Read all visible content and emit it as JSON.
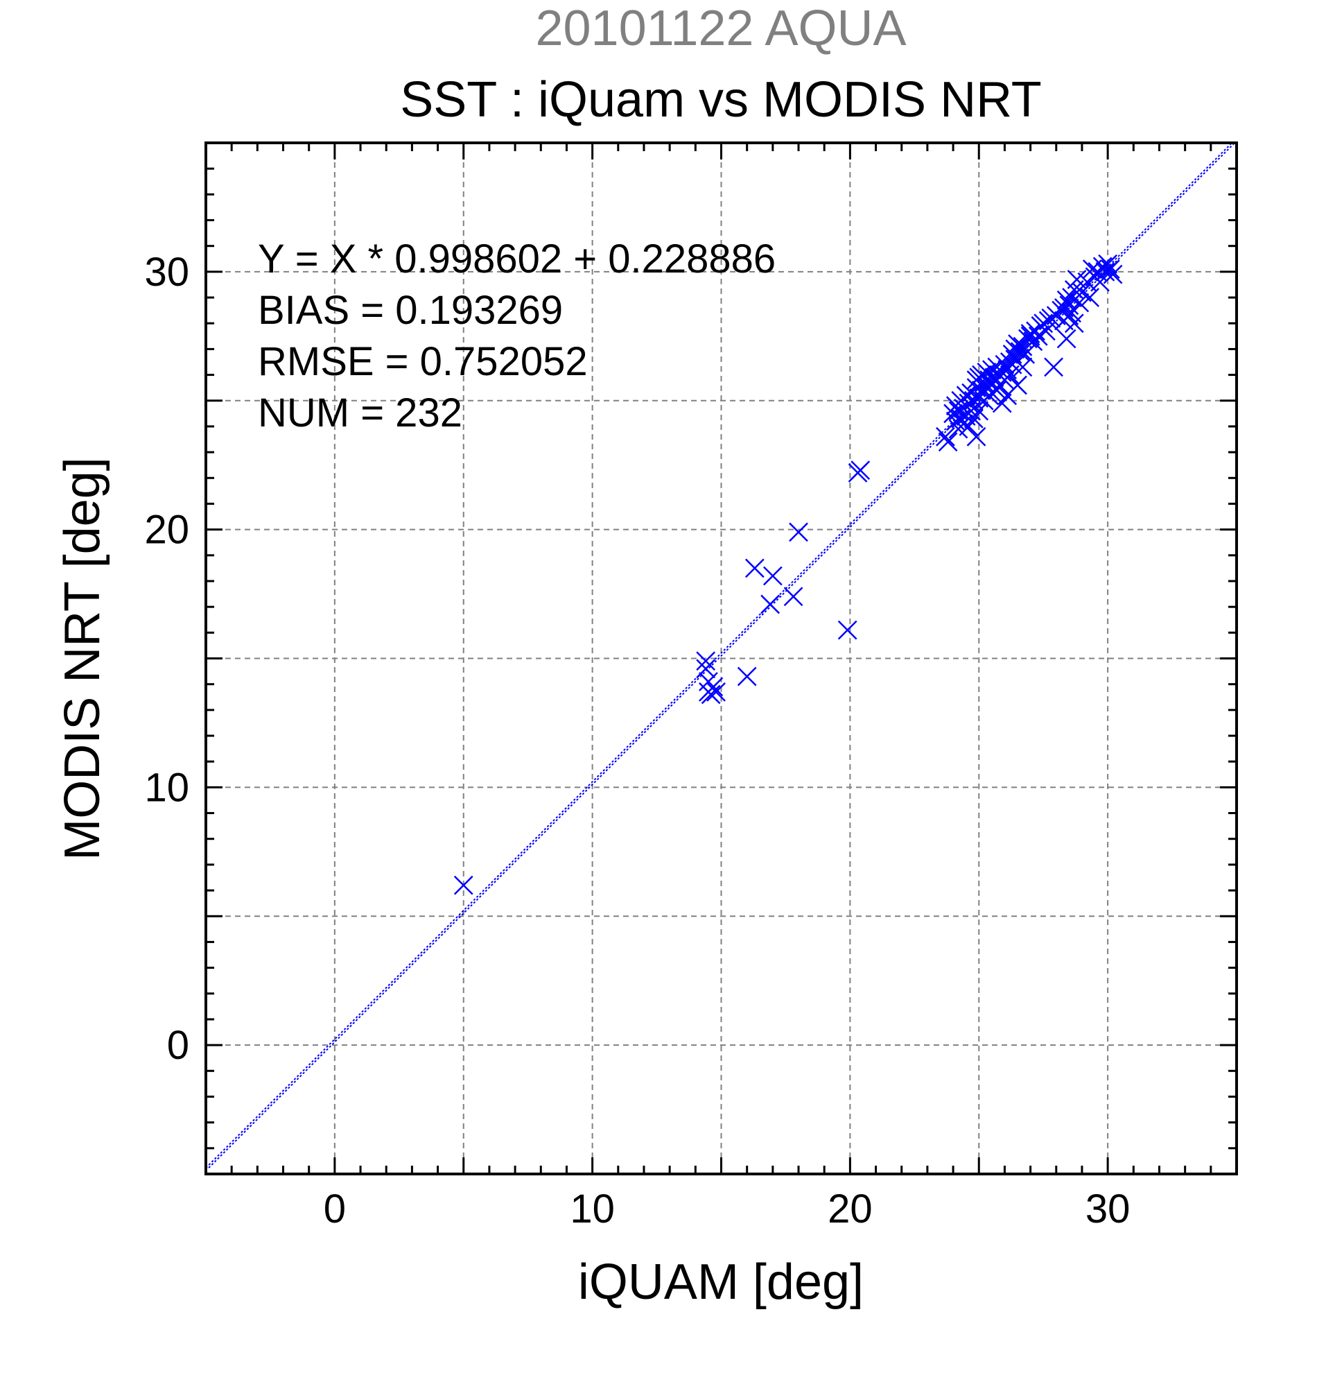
{
  "header": {
    "subtitle": "20101122 AQUA",
    "title": "SST : iQuam vs MODIS NRT"
  },
  "stats": {
    "equation": "Y = X * 0.998602 + 0.228886",
    "bias": "BIAS = 0.193269",
    "rmse": "RMSE = 0.752052",
    "num": "NUM = 232"
  },
  "chart_data": {
    "type": "scatter",
    "title": "SST : iQuam vs MODIS NRT",
    "subtitle": "20101122 AQUA",
    "xlabel": "iQUAM [deg]",
    "ylabel": "MODIS NRT [deg]",
    "xlim": [
      -5,
      35
    ],
    "ylim": [
      -5,
      35
    ],
    "xticks": [
      0,
      10,
      20,
      30
    ],
    "yticks": [
      0,
      10,
      20,
      30
    ],
    "grid": true,
    "marker": "x",
    "color": "#0000ff",
    "fit_line": {
      "slope": 0.998602,
      "intercept": 0.228886,
      "style": "dotted",
      "color": "#0000ff"
    },
    "series": [
      {
        "points": [
          [
            5.0,
            6.2
          ],
          [
            14.4,
            14.9
          ],
          [
            14.4,
            14.6
          ],
          [
            14.5,
            14.1
          ],
          [
            14.5,
            13.7
          ],
          [
            14.6,
            13.6
          ],
          [
            14.8,
            13.7
          ],
          [
            14.7,
            13.9
          ],
          [
            16.0,
            14.3
          ],
          [
            16.3,
            18.5
          ],
          [
            17.0,
            18.2
          ],
          [
            16.9,
            17.1
          ],
          [
            17.8,
            17.4
          ],
          [
            18.0,
            19.9
          ],
          [
            19.9,
            16.1
          ],
          [
            20.3,
            22.2
          ],
          [
            20.4,
            22.3
          ],
          [
            23.7,
            23.6
          ],
          [
            23.8,
            23.4
          ],
          [
            24.0,
            24.5
          ],
          [
            24.1,
            24.2
          ],
          [
            24.1,
            24.8
          ],
          [
            24.2,
            23.9
          ],
          [
            24.2,
            24.6
          ],
          [
            24.3,
            25.0
          ],
          [
            24.3,
            24.3
          ],
          [
            24.4,
            24.7
          ],
          [
            24.4,
            24.1
          ],
          [
            24.5,
            25.2
          ],
          [
            24.5,
            24.4
          ],
          [
            24.6,
            24.9
          ],
          [
            24.6,
            24.0
          ],
          [
            24.7,
            25.3
          ],
          [
            24.7,
            24.6
          ],
          [
            24.8,
            25.0
          ],
          [
            24.8,
            24.3
          ],
          [
            24.9,
            25.5
          ],
          [
            24.9,
            25.8
          ],
          [
            24.9,
            23.6
          ],
          [
            25.0,
            25.9
          ],
          [
            25.0,
            25.1
          ],
          [
            25.0,
            24.6
          ],
          [
            25.1,
            26.0
          ],
          [
            25.1,
            25.4
          ],
          [
            25.2,
            25.7
          ],
          [
            25.2,
            25.0
          ],
          [
            25.3,
            26.1
          ],
          [
            25.3,
            25.5
          ],
          [
            25.4,
            25.8
          ],
          [
            25.4,
            25.2
          ],
          [
            25.5,
            26.2
          ],
          [
            25.5,
            25.6
          ],
          [
            25.6,
            25.9
          ],
          [
            25.7,
            26.3
          ],
          [
            25.7,
            25.4
          ],
          [
            25.8,
            26.0
          ],
          [
            25.8,
            25.6
          ],
          [
            25.9,
            26.1
          ],
          [
            25.9,
            24.9
          ],
          [
            26.0,
            26.4
          ],
          [
            26.0,
            25.8
          ],
          [
            26.1,
            26.2
          ],
          [
            26.1,
            25.2
          ],
          [
            26.2,
            26.5
          ],
          [
            26.2,
            26.0
          ],
          [
            26.3,
            26.8
          ],
          [
            26.3,
            26.4
          ],
          [
            26.4,
            27.0
          ],
          [
            26.4,
            26.6
          ],
          [
            26.5,
            27.2
          ],
          [
            26.5,
            25.6
          ],
          [
            26.6,
            26.9
          ],
          [
            26.7,
            27.1
          ],
          [
            26.7,
            26.3
          ],
          [
            26.8,
            26.8
          ],
          [
            26.9,
            27.4
          ],
          [
            27.0,
            27.5
          ],
          [
            27.0,
            27.6
          ],
          [
            27.1,
            27.3
          ],
          [
            27.2,
            27.7
          ],
          [
            27.3,
            27.5
          ],
          [
            27.4,
            27.9
          ],
          [
            27.5,
            28.0
          ],
          [
            27.6,
            27.7
          ],
          [
            27.7,
            28.1
          ],
          [
            27.8,
            28.2
          ],
          [
            27.9,
            26.3
          ],
          [
            28.0,
            28.3
          ],
          [
            28.2,
            28.5
          ],
          [
            28.3,
            28.6
          ],
          [
            28.3,
            28.1
          ],
          [
            28.4,
            28.9
          ],
          [
            28.4,
            27.4
          ],
          [
            28.5,
            28.7
          ],
          [
            28.5,
            28.3
          ],
          [
            28.6,
            29.0
          ],
          [
            28.6,
            28.4
          ],
          [
            28.7,
            29.3
          ],
          [
            28.7,
            28.0
          ],
          [
            28.8,
            29.7
          ],
          [
            28.9,
            28.8
          ],
          [
            29.0,
            29.2
          ],
          [
            29.2,
            29.6
          ],
          [
            29.3,
            29.0
          ],
          [
            29.4,
            30.1
          ],
          [
            29.5,
            29.8
          ],
          [
            29.6,
            30.0
          ],
          [
            29.7,
            29.6
          ],
          [
            29.8,
            30.2
          ],
          [
            29.9,
            30.0
          ],
          [
            30.0,
            30.3
          ],
          [
            30.1,
            30.1
          ],
          [
            30.2,
            29.9
          ]
        ]
      }
    ]
  }
}
